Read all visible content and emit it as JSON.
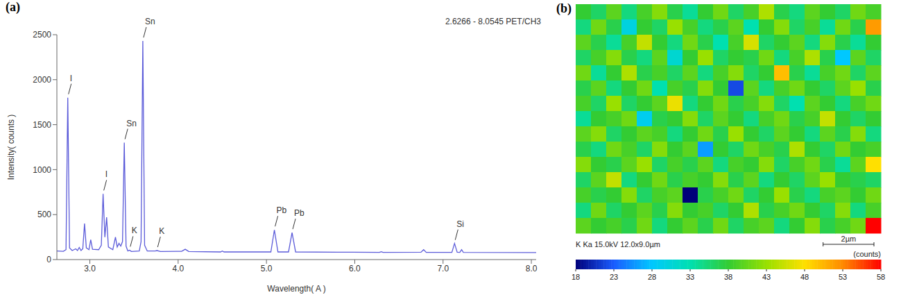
{
  "chart_data": [
    {
      "panel": "(a)",
      "type": "line",
      "title": "2.6266 - 8.0545 PET/CH3",
      "x_label": "Wavelength( A )",
      "y_label": "Intensity( counts )",
      "color": "#5b5bd9",
      "grid": false,
      "xlim": [
        2.6266,
        8.0545
      ],
      "xticks": [
        {
          "value": 3,
          "label": "3.0"
        },
        {
          "value": 4,
          "label": "4.0"
        },
        {
          "value": 5,
          "label": "5.0"
        },
        {
          "value": 6,
          "label": "6.0"
        },
        {
          "value": 7,
          "label": "7.0"
        },
        {
          "value": 8,
          "label": "8.0"
        }
      ],
      "ylim": [
        0,
        2500
      ],
      "yticks": [
        0,
        500,
        1000,
        1500,
        2000,
        2500
      ],
      "x": [
        2.6266,
        2.7,
        2.73,
        2.75,
        2.77,
        2.8,
        2.84,
        2.86,
        2.88,
        2.9,
        2.92,
        2.94,
        2.96,
        2.99,
        3.01,
        3.03,
        3.1,
        3.13,
        3.15,
        3.17,
        3.19,
        3.21,
        3.26,
        3.29,
        3.31,
        3.33,
        3.35,
        3.37,
        3.39,
        3.41,
        3.43,
        3.45,
        3.47,
        3.56,
        3.58,
        3.6,
        3.62,
        3.65,
        3.74,
        3.76,
        3.8,
        4.04,
        4.08,
        4.12,
        4.48,
        4.5,
        4.52,
        5.05,
        5.09,
        5.13,
        5.25,
        5.29,
        5.33,
        5.8,
        6.28,
        6.3,
        6.32,
        6.75,
        6.78,
        6.81,
        7.1,
        7.13,
        7.16,
        7.19,
        7.21,
        7.23,
        8.0545
      ],
      "values": [
        95,
        92,
        110,
        1800,
        130,
        100,
        120,
        100,
        135,
        100,
        120,
        400,
        130,
        110,
        220,
        115,
        110,
        160,
        730,
        250,
        470,
        140,
        110,
        250,
        140,
        180,
        150,
        200,
        1300,
        150,
        95,
        105,
        90,
        95,
        200,
        2430,
        160,
        95,
        95,
        100,
        90,
        92,
        115,
        90,
        85,
        95,
        85,
        85,
        330,
        85,
        85,
        300,
        85,
        82,
        80,
        88,
        80,
        82,
        110,
        80,
        80,
        180,
        82,
        80,
        110,
        80,
        78
      ],
      "annotations": [
        {
          "text": "I",
          "x": 2.75,
          "y": 1800
        },
        {
          "text": "I",
          "x": 3.15,
          "y": 730
        },
        {
          "text": "Sn",
          "x": 3.39,
          "y": 1300
        },
        {
          "text": "Sn",
          "x": 3.6,
          "y": 2430
        },
        {
          "text": "K",
          "x": 3.45,
          "y": 105
        },
        {
          "text": "K",
          "x": 3.76,
          "y": 100
        },
        {
          "text": "Pb",
          "x": 5.09,
          "y": 330
        },
        {
          "text": "Pb",
          "x": 5.29,
          "y": 300
        },
        {
          "text": "Si",
          "x": 7.13,
          "y": 180
        }
      ]
    },
    {
      "panel": "(b)",
      "type": "heatmap",
      "caption": "K Ka 15.0kV 12.0x9.0µm",
      "extent": [
        12.0,
        9.0
      ],
      "scale_bar": {
        "label": "2µm",
        "length": 2
      },
      "cells": [
        [
          38,
          36,
          40,
          35,
          39,
          42,
          37,
          34,
          38,
          41,
          36,
          39,
          44,
          37,
          35,
          40,
          38,
          36,
          41,
          39
        ],
        [
          35,
          41,
          37,
          30,
          38,
          36,
          43,
          39,
          35,
          37,
          40,
          33,
          38,
          42,
          36,
          39,
          34,
          41,
          37,
          52
        ],
        [
          40,
          37,
          34,
          39,
          45,
          38,
          35,
          41,
          37,
          33,
          39,
          46,
          36,
          38,
          40,
          35,
          42,
          37,
          34,
          38
        ],
        [
          36,
          39,
          42,
          37,
          35,
          40,
          31,
          38,
          43,
          36,
          38,
          37,
          41,
          35,
          39,
          44,
          37,
          28,
          40,
          36
        ],
        [
          41,
          34,
          38,
          44,
          37,
          39,
          36,
          40,
          35,
          39,
          42,
          36,
          38,
          50,
          37,
          34,
          39,
          41,
          36,
          40
        ],
        [
          37,
          40,
          35,
          38,
          41,
          33,
          39,
          37,
          42,
          38,
          22,
          40,
          35,
          39,
          41,
          38,
          36,
          40,
          43,
          37
        ],
        [
          39,
          36,
          43,
          36,
          38,
          40,
          47,
          35,
          38,
          41,
          37,
          39,
          42,
          36,
          33,
          40,
          38,
          35,
          39,
          41
        ],
        [
          34,
          38,
          39,
          41,
          29,
          37,
          38,
          42,
          36,
          40,
          38,
          35,
          39,
          41,
          37,
          39,
          45,
          38,
          36,
          38
        ],
        [
          40,
          42,
          36,
          38,
          40,
          39,
          35,
          38,
          41,
          37,
          43,
          38,
          36,
          40,
          38,
          35,
          40,
          37,
          42,
          35
        ],
        [
          37,
          35,
          41,
          39,
          36,
          42,
          38,
          40,
          26,
          38,
          36,
          41,
          39,
          37,
          44,
          38,
          36,
          41,
          38,
          39
        ],
        [
          42,
          38,
          37,
          40,
          43,
          36,
          39,
          37,
          40,
          35,
          39,
          38,
          42,
          36,
          39,
          41,
          37,
          34,
          40,
          48
        ],
        [
          36,
          40,
          45,
          35,
          38,
          41,
          37,
          39,
          38,
          42,
          37,
          40,
          35,
          38,
          36,
          40,
          43,
          38,
          37,
          36
        ],
        [
          39,
          37,
          38,
          42,
          36,
          39,
          40,
          18,
          37,
          39,
          41,
          36,
          38,
          43,
          37,
          35,
          39,
          40,
          38,
          41
        ],
        [
          35,
          41,
          36,
          38,
          40,
          37,
          42,
          38,
          39,
          36,
          38,
          44,
          37,
          39,
          41,
          38,
          36,
          42,
          35,
          39
        ],
        [
          40,
          38,
          39,
          37,
          41,
          35,
          38,
          40,
          37,
          41,
          36,
          39,
          40,
          35,
          38,
          42,
          37,
          39,
          41,
          58
        ]
      ],
      "colorbar": {
        "label": "(counts)",
        "range": [
          18,
          58
        ],
        "ticks": [
          18,
          23,
          28,
          33,
          38,
          43,
          48,
          53,
          58
        ]
      }
    }
  ]
}
